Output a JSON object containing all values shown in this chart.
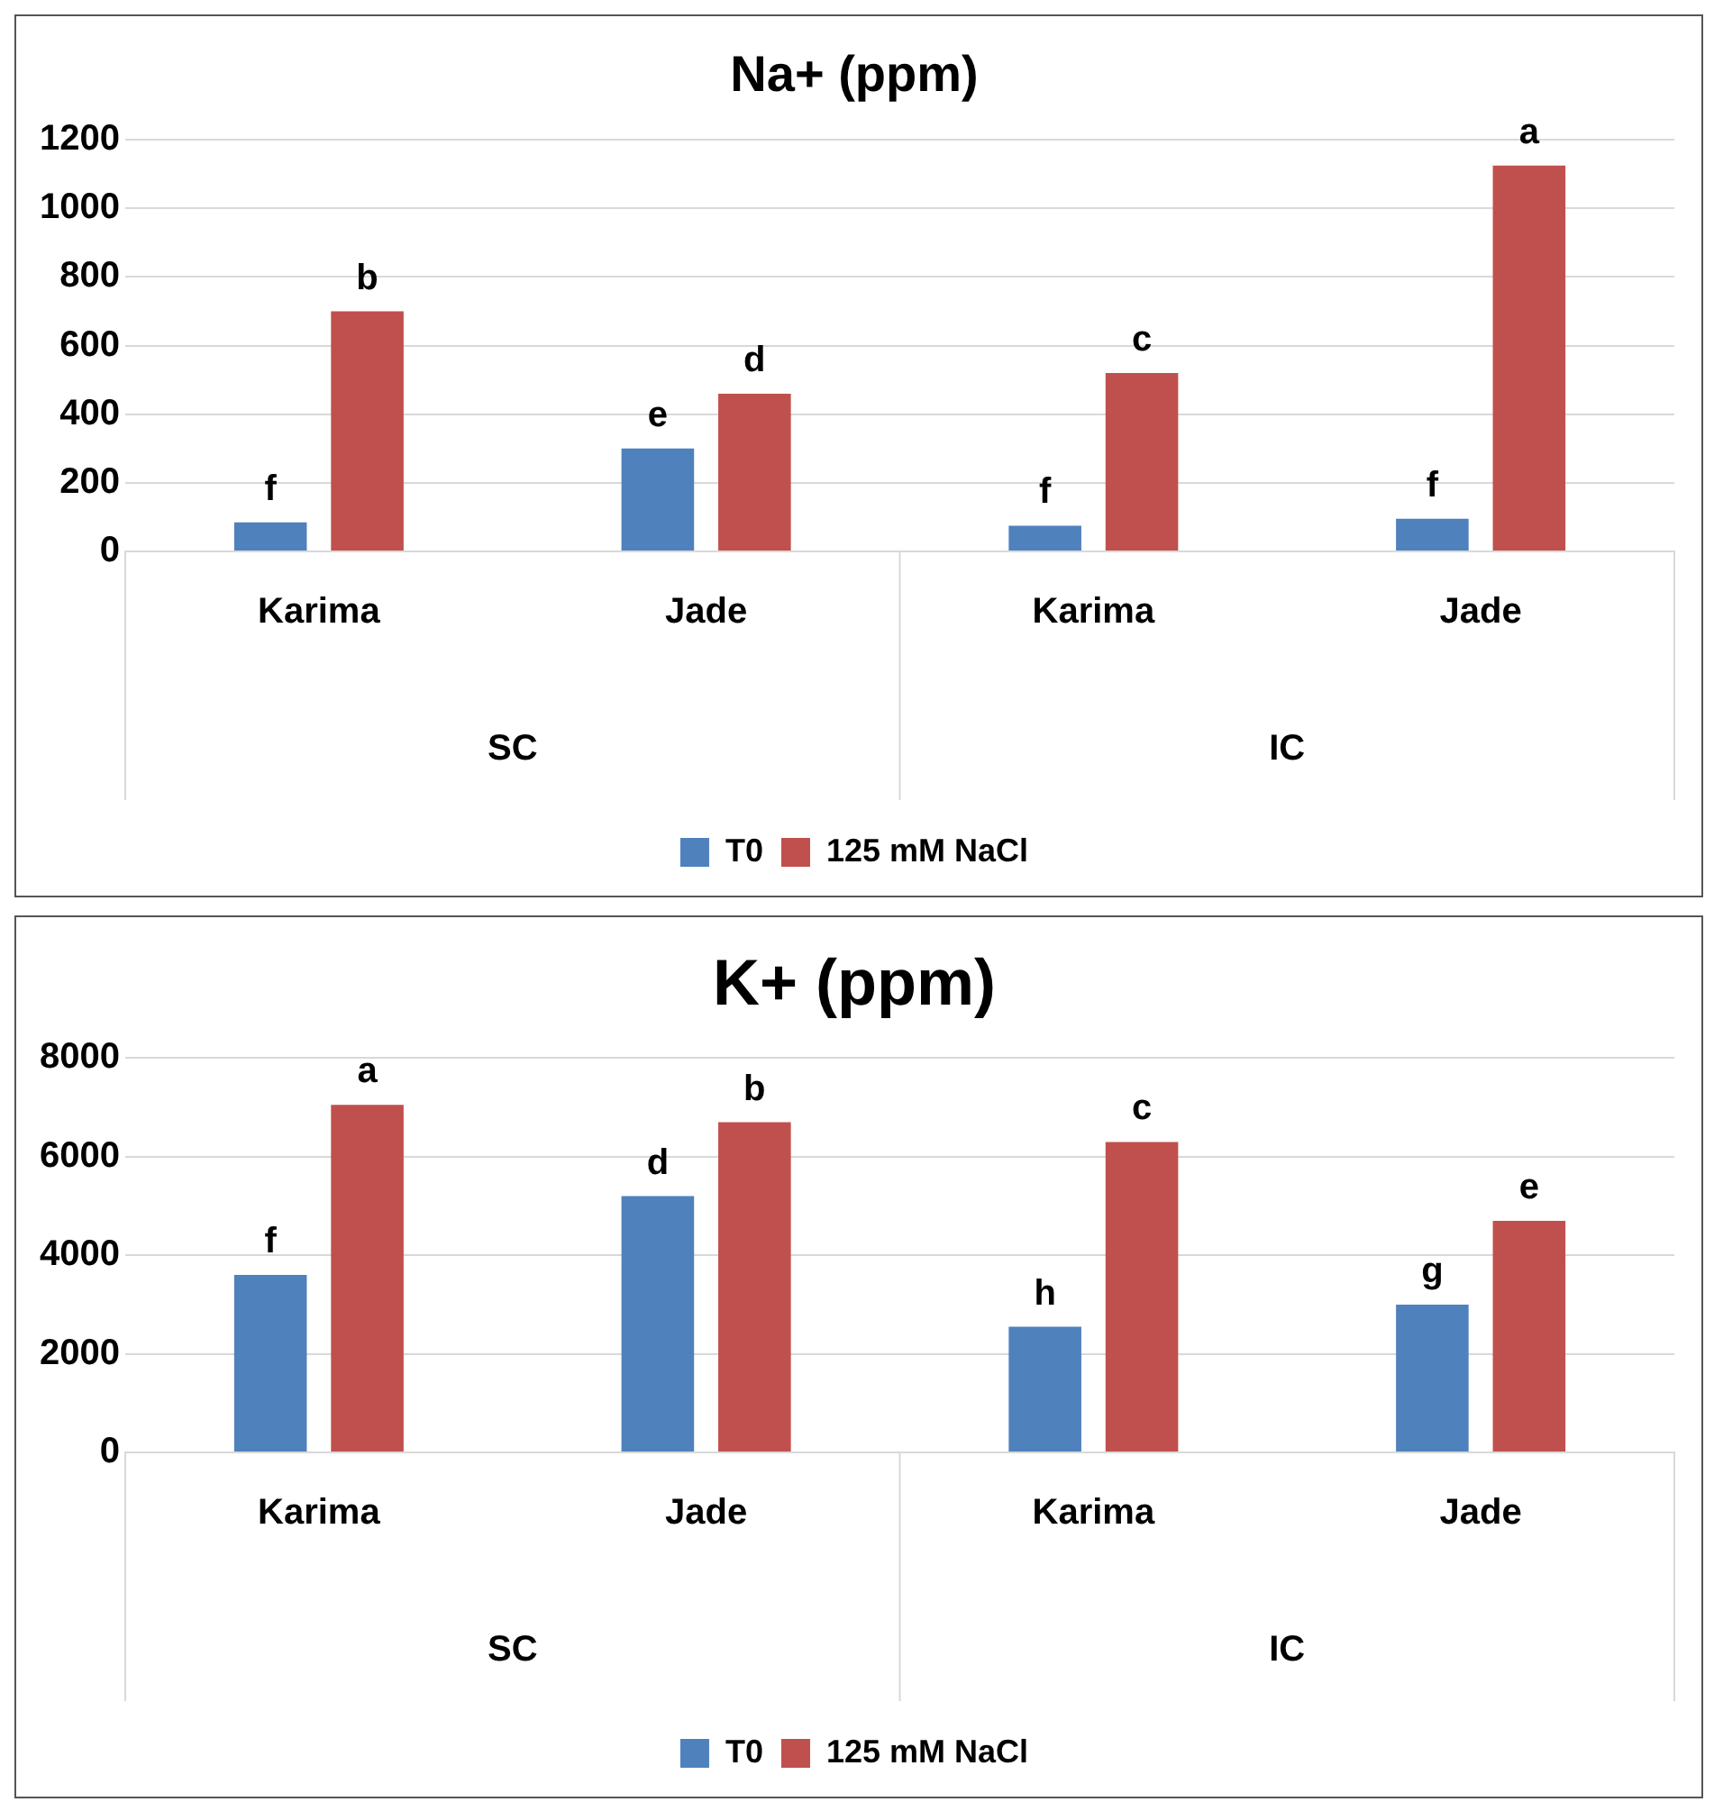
{
  "chart_data": [
    {
      "type": "bar",
      "title": "Na+ (ppm)",
      "categories": [
        "Karima",
        "Jade",
        "Karima",
        "Jade"
      ],
      "annotations": [
        "SC",
        "IC"
      ],
      "series": [
        {
          "name": "T0",
          "color": "#4f81bd",
          "values": [
            85,
            300,
            75,
            95
          ],
          "value_labels": [
            "f",
            "e",
            "f",
            "f"
          ]
        },
        {
          "name": "125 mM NaCl",
          "color": "#c0504d",
          "values": [
            700,
            460,
            520,
            1125
          ],
          "value_labels": [
            "b",
            "d",
            "c",
            "a"
          ]
        }
      ],
      "ylim": [
        0,
        1200
      ],
      "yticks": [
        0,
        200,
        400,
        600,
        800,
        1000,
        1200
      ],
      "grid": "y",
      "legend": "bottom"
    },
    {
      "type": "bar",
      "title": "K+ (ppm)",
      "categories": [
        "Karima",
        "Jade",
        "Karima",
        "Jade"
      ],
      "annotations": [
        "SC",
        "IC"
      ],
      "series": [
        {
          "name": "T0",
          "color": "#4f81bd",
          "values": [
            3600,
            5200,
            2550,
            3000
          ],
          "value_labels": [
            "f",
            "d",
            "h",
            "g"
          ]
        },
        {
          "name": "125 mM NaCl",
          "color": "#c0504d",
          "values": [
            7050,
            6700,
            6300,
            4700
          ],
          "value_labels": [
            "a",
            "b",
            "c",
            "e"
          ]
        }
      ],
      "ylim": [
        0,
        8000
      ],
      "yticks": [
        0,
        2000,
        4000,
        6000,
        8000
      ],
      "grid": "y",
      "legend": "bottom"
    }
  ]
}
